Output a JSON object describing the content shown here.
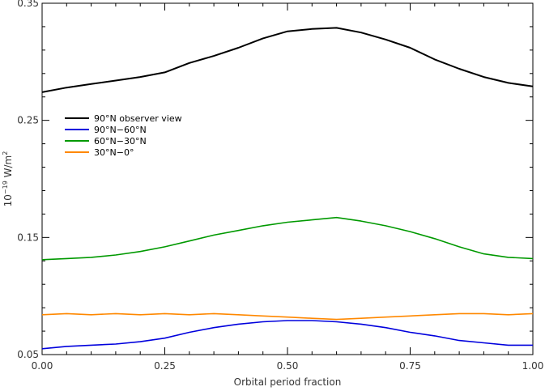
{
  "chart_data": {
    "type": "line",
    "xlabel": "Orbital period fraction",
    "ylabel_base": "10",
    "ylabel_exp": "−19",
    "ylabel_unit": " W/m",
    "ylabel_unit_exp": "2",
    "xlim": [
      0.0,
      1.0
    ],
    "ylim": [
      0.05,
      0.35
    ],
    "x_ticks": [
      0.0,
      0.25,
      0.5,
      0.75,
      1.0
    ],
    "x_tick_labels": [
      "0.00",
      "0.25",
      "0.50",
      "0.75",
      "1.00"
    ],
    "y_ticks": [
      0.05,
      0.15,
      0.25,
      0.35
    ],
    "y_tick_labels": [
      "0.05",
      "0.15",
      "0.25",
      "0.35"
    ],
    "grid": false,
    "legend_position": "left",
    "series": [
      {
        "name": "90°N observer view",
        "color": "#000000",
        "x": [
          0.0,
          0.05,
          0.1,
          0.15,
          0.2,
          0.25,
          0.3,
          0.35,
          0.4,
          0.45,
          0.5,
          0.55,
          0.6,
          0.65,
          0.7,
          0.75,
          0.8,
          0.85,
          0.9,
          0.95,
          1.0
        ],
        "y": [
          0.274,
          0.278,
          0.281,
          0.284,
          0.287,
          0.291,
          0.299,
          0.305,
          0.312,
          0.32,
          0.326,
          0.328,
          0.329,
          0.325,
          0.319,
          0.312,
          0.302,
          0.294,
          0.287,
          0.282,
          0.279
        ]
      },
      {
        "name": "90°N−60°N",
        "color": "#0000dd",
        "x": [
          0.0,
          0.05,
          0.1,
          0.15,
          0.2,
          0.25,
          0.3,
          0.35,
          0.4,
          0.45,
          0.5,
          0.55,
          0.6,
          0.65,
          0.7,
          0.75,
          0.8,
          0.85,
          0.9,
          0.95,
          1.0
        ],
        "y": [
          0.055,
          0.057,
          0.058,
          0.059,
          0.061,
          0.064,
          0.069,
          0.073,
          0.076,
          0.078,
          0.079,
          0.079,
          0.078,
          0.076,
          0.073,
          0.069,
          0.066,
          0.062,
          0.06,
          0.058,
          0.058
        ]
      },
      {
        "name": "60°N−30°N",
        "color": "#009900",
        "x": [
          0.0,
          0.05,
          0.1,
          0.15,
          0.2,
          0.25,
          0.3,
          0.35,
          0.4,
          0.45,
          0.5,
          0.55,
          0.6,
          0.65,
          0.7,
          0.75,
          0.8,
          0.85,
          0.9,
          0.95,
          1.0
        ],
        "y": [
          0.131,
          0.132,
          0.133,
          0.135,
          0.138,
          0.142,
          0.147,
          0.152,
          0.156,
          0.16,
          0.163,
          0.165,
          0.167,
          0.164,
          0.16,
          0.155,
          0.149,
          0.142,
          0.136,
          0.133,
          0.132
        ]
      },
      {
        "name": "30°N−0°",
        "color": "#ff8800",
        "x": [
          0.0,
          0.05,
          0.1,
          0.15,
          0.2,
          0.25,
          0.3,
          0.35,
          0.4,
          0.45,
          0.5,
          0.55,
          0.6,
          0.65,
          0.7,
          0.75,
          0.8,
          0.85,
          0.9,
          0.95,
          1.0
        ],
        "y": [
          0.084,
          0.085,
          0.084,
          0.085,
          0.084,
          0.085,
          0.084,
          0.085,
          0.084,
          0.083,
          0.082,
          0.081,
          0.08,
          0.081,
          0.082,
          0.083,
          0.084,
          0.085,
          0.085,
          0.084,
          0.085
        ]
      }
    ]
  }
}
